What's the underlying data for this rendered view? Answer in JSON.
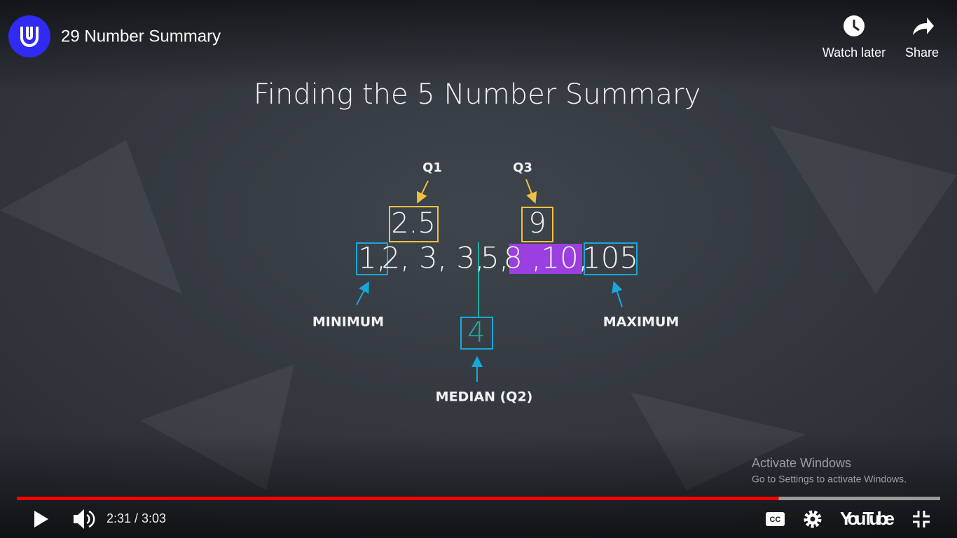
{
  "video": {
    "title": "29 Number Summary"
  },
  "top_actions": [
    "Watch later",
    "Share"
  ],
  "slide": {
    "title": "Finding the 5 Number Summary",
    "q1_label": "Q1",
    "q3_label": "Q3",
    "q1_value": "2.5",
    "q3_value": "9",
    "sequence": [
      "1,",
      "2, 3, 3,",
      "5,",
      "8 ,10,",
      "105"
    ],
    "minimum_label": "MINIMUM",
    "maximum_label": "MAXIMUM",
    "median_value": "4",
    "median_label": "MEDIAN (Q2)"
  },
  "watermark": {
    "title": "Activate Windows",
    "subtitle": "Go to Settings to activate Windows."
  },
  "player": {
    "time": "2:31 / 3:03",
    "current_seconds": 151,
    "duration_seconds": 183,
    "brand": "YouTube"
  }
}
